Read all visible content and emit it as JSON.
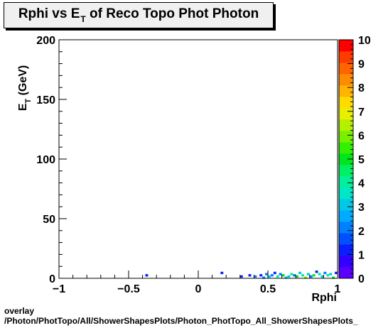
{
  "chart_data": {
    "type": "heatmap",
    "title": {
      "main": "Rphi vs E",
      "sub": "T",
      "rest": " of Reco Topo Phot Photon"
    },
    "xlabel": "Rphi",
    "ylabel": {
      "main": "E",
      "sub": "T",
      "rest": " (GeV)"
    },
    "xlim": [
      -1,
      1
    ],
    "ylim": [
      0,
      200
    ],
    "x_ticks": [
      "−1",
      "−0.5",
      "0",
      "0.5",
      "1"
    ],
    "y_ticks": [
      "0",
      "50",
      "100",
      "150",
      "200"
    ],
    "z_range": [
      0,
      10
    ],
    "z_ticks": [
      "0",
      "1",
      "2",
      "3",
      "4",
      "5",
      "6",
      "7",
      "8",
      "9",
      "10"
    ],
    "palette": [
      "#5b00ff",
      "#3300ff",
      "#0a1eff",
      "#0050ff",
      "#0080ff",
      "#00aaff",
      "#00c8e6",
      "#00e6c8",
      "#00f09b",
      "#00f064",
      "#00e61e",
      "#32f000",
      "#78f000",
      "#b4f000",
      "#e6f000",
      "#ffdc00",
      "#ffb400",
      "#ff8c00",
      "#ff6400",
      "#ff3c00",
      "#ff0000"
    ],
    "cells": [
      {
        "x": -0.37,
        "y": 2.5,
        "z": 1
      },
      {
        "x": 0.17,
        "y": 4.5,
        "z": 1
      },
      {
        "x": 0.31,
        "y": 1.5,
        "z": 1
      },
      {
        "x": 0.37,
        "y": 2.5,
        "z": 1
      },
      {
        "x": 0.41,
        "y": 1.5,
        "z": 2
      },
      {
        "x": 0.45,
        "y": 2.5,
        "z": 1
      },
      {
        "x": 0.47,
        "y": 0.5,
        "z": 2
      },
      {
        "x": 0.49,
        "y": 3.5,
        "z": 2
      },
      {
        "x": 0.51,
        "y": 1.5,
        "z": 3
      },
      {
        "x": 0.53,
        "y": 2.5,
        "z": 2
      },
      {
        "x": 0.55,
        "y": 4.5,
        "z": 1
      },
      {
        "x": 0.57,
        "y": 1.5,
        "z": 4
      },
      {
        "x": 0.59,
        "y": 3.5,
        "z": 2
      },
      {
        "x": 0.61,
        "y": 2.5,
        "z": 5
      },
      {
        "x": 0.63,
        "y": 0.5,
        "z": 3
      },
      {
        "x": 0.65,
        "y": 1.5,
        "z": 3
      },
      {
        "x": 0.67,
        "y": 3.5,
        "z": 4
      },
      {
        "x": 0.69,
        "y": 2.5,
        "z": 2
      },
      {
        "x": 0.71,
        "y": 1.5,
        "z": 5
      },
      {
        "x": 0.73,
        "y": 4.5,
        "z": 3
      },
      {
        "x": 0.75,
        "y": 2.5,
        "z": 4
      },
      {
        "x": 0.77,
        "y": 0.5,
        "z": 6
      },
      {
        "x": 0.79,
        "y": 3.5,
        "z": 3
      },
      {
        "x": 0.81,
        "y": 1.5,
        "z": 2
      },
      {
        "x": 0.83,
        "y": 2.5,
        "z": 5
      },
      {
        "x": 0.85,
        "y": 5.5,
        "z": 1
      },
      {
        "x": 0.87,
        "y": 3.5,
        "z": 4
      },
      {
        "x": 0.89,
        "y": 1.5,
        "z": 3
      },
      {
        "x": 0.91,
        "y": 4.5,
        "z": 2
      },
      {
        "x": 0.93,
        "y": 2.5,
        "z": 4
      },
      {
        "x": 0.95,
        "y": 3.5,
        "z": 3
      },
      {
        "x": 0.97,
        "y": 0.5,
        "z": 5
      },
      {
        "x": 0.99,
        "y": 4.5,
        "z": 1
      }
    ]
  },
  "footer": {
    "line1": "overlay",
    "line2": "/Photon/PhotTopo/All/ShowerShapesPlots/Photon_PhotTopo_All_ShowerShapesPlots_"
  }
}
